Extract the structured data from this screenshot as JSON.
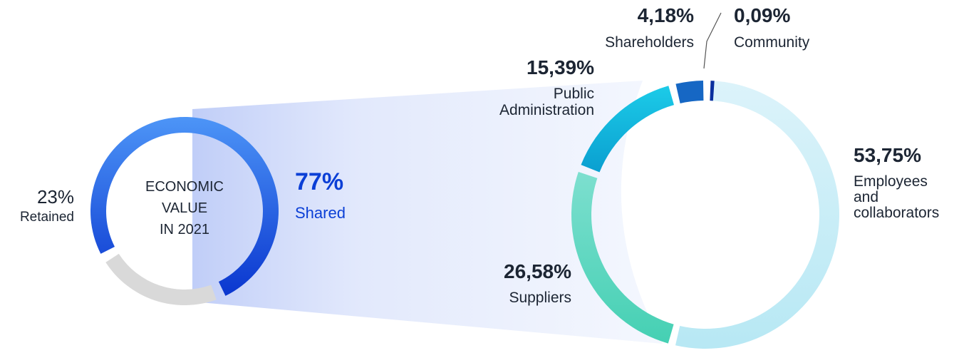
{
  "chart_data": [
    {
      "type": "pie",
      "donut": true,
      "center_label": [
        "ECONOMIC",
        "VALUE",
        "IN 2021"
      ],
      "slices": [
        {
          "name": "Shared",
          "value": 77,
          "label": "77%",
          "color": "#2a62e6"
        },
        {
          "name": "Retained",
          "value": 23,
          "label": "23%",
          "color": "#d9d9d9"
        }
      ]
    },
    {
      "type": "pie",
      "donut": true,
      "slices": [
        {
          "name": "Employees and collaborators",
          "lines": [
            "Employees",
            "and",
            "collaborators"
          ],
          "value": 53.75,
          "label": "53,75%",
          "color": "#c4ecf6"
        },
        {
          "name": "Suppliers",
          "lines": [
            "Suppliers"
          ],
          "value": 26.58,
          "label": "26,58%",
          "color": "#5fd6bf"
        },
        {
          "name": "Public Administration",
          "lines": [
            "Public",
            "Administration"
          ],
          "value": 15.39,
          "label": "15,39%",
          "color": "#14b8dd"
        },
        {
          "name": "Shareholders",
          "lines": [
            "Shareholders"
          ],
          "value": 4.18,
          "label": "4,18%",
          "color": "#1667c4"
        },
        {
          "name": "Community",
          "lines": [
            "Community"
          ],
          "value": 0.09,
          "label": "0,09%",
          "color": "#0a2f9e"
        }
      ]
    }
  ]
}
